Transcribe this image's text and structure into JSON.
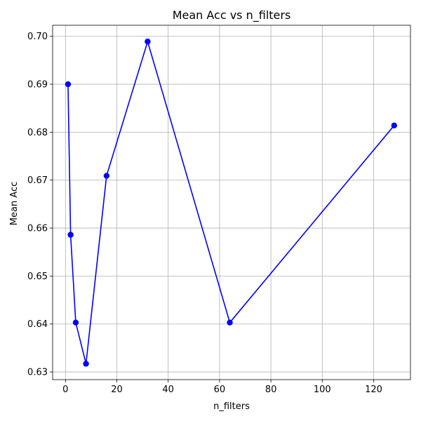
{
  "chart_data": {
    "type": "line",
    "title": "Mean Acc vs n_filters",
    "xlabel": "n_filters",
    "ylabel": "Mean Acc",
    "xlim": [
      -5,
      134.35
    ],
    "ylim": [
      0.6284,
      0.7023
    ],
    "xticks": [
      0,
      20,
      40,
      60,
      80,
      100,
      120
    ],
    "yticks": [
      0.63,
      0.64,
      0.65,
      0.66,
      0.67,
      0.68,
      0.69,
      0.7
    ],
    "xtick_labels": [
      "0",
      "20",
      "40",
      "60",
      "80",
      "100",
      "120"
    ],
    "ytick_labels": [
      "0.63",
      "0.64",
      "0.65",
      "0.66",
      "0.67",
      "0.68",
      "0.69",
      "0.70"
    ],
    "grid": true,
    "series": [
      {
        "color": "#0000ff",
        "marker": "circle",
        "x": [
          1,
          2,
          4,
          8,
          16,
          32,
          64,
          128
        ],
        "y": [
          0.69,
          0.6586,
          0.6403,
          0.6317,
          0.6709,
          0.6989,
          0.6403,
          0.6814
        ]
      }
    ]
  }
}
